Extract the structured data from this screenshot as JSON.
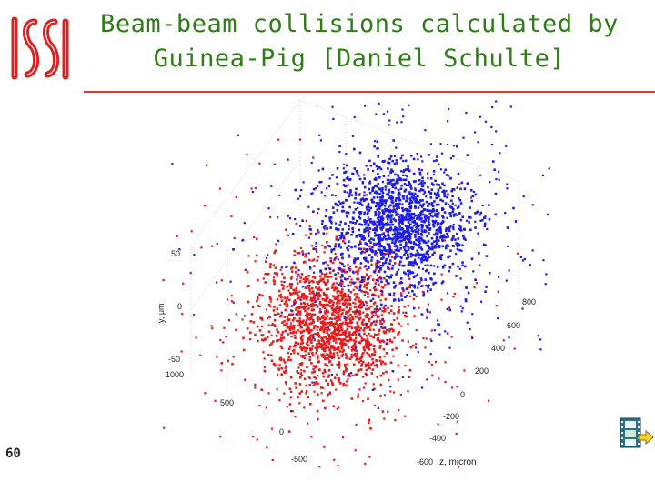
{
  "slide": {
    "title_line1": "Beam-beam collisions calculated by",
    "title_line2": "Guinea-Pig [Daniel Schulte]",
    "slide_number": "60",
    "colors": {
      "title": "#2e7d17",
      "rule": "#e53b1d",
      "logo": "#e02020",
      "beam_a": "#1c1cf0",
      "beam_b": "#e81c1c"
    }
  },
  "chart_data": {
    "type": "scatter",
    "title": "",
    "axis_labels": {
      "y": "y, μm",
      "z": "z, micron"
    },
    "y_ticks": [
      "50",
      "0",
      "-50"
    ],
    "x_ticks": [
      "1000",
      "500",
      "0",
      "-500"
    ],
    "z_ticks": [
      "800",
      "600",
      "400",
      "200",
      "0",
      "-200",
      "-400",
      "-600"
    ],
    "grid": true,
    "series": [
      {
        "color": "#1c1cf0",
        "center_z": 250,
        "center_y": 20
      },
      {
        "color": "#e81c1c",
        "center_z": -250,
        "center_y": -20
      }
    ]
  },
  "icons": {
    "logo": "institute-logo",
    "movie": "movie-clip-icon"
  }
}
